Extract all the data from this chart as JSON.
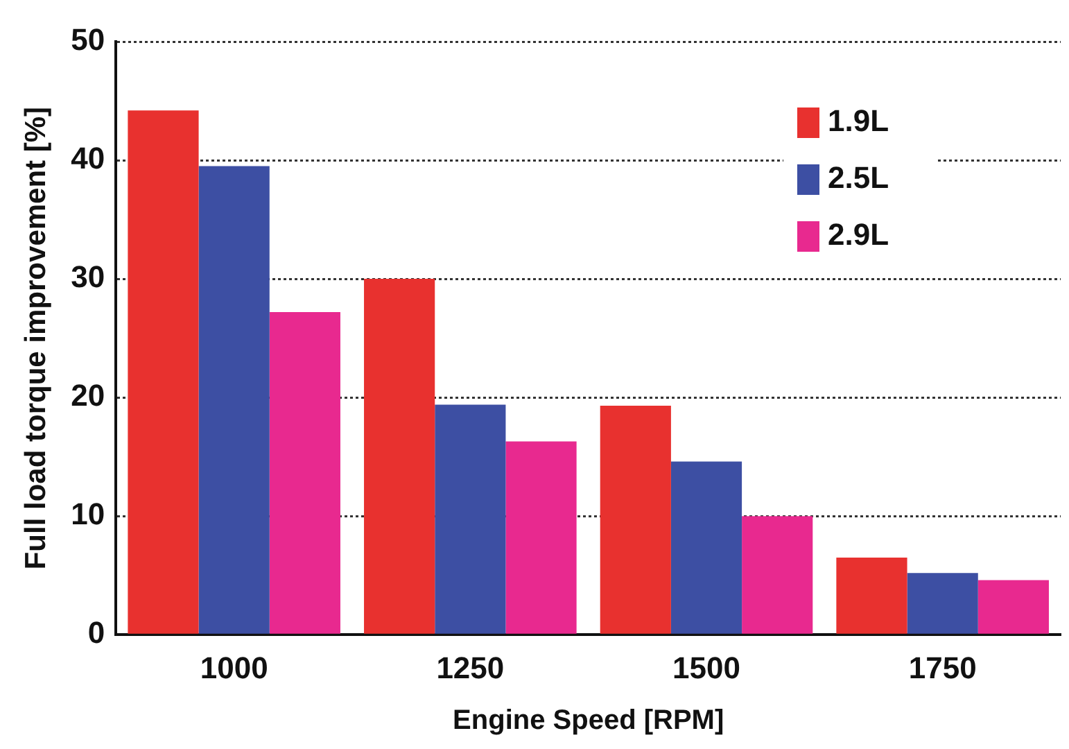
{
  "chart_data": {
    "type": "bar",
    "xlabel": "Engine Speed [RPM]",
    "ylabel": "Full load torque improvement [%]",
    "categories": [
      "1000",
      "1250",
      "1500",
      "1750"
    ],
    "series": [
      {
        "name": "1.9L",
        "color": "#e8312f",
        "values": [
          44.2,
          30,
          19.3,
          6.5
        ]
      },
      {
        "name": "2.5L",
        "color": "#3d4fa3",
        "values": [
          39.5,
          19.4,
          14.6,
          5.2
        ]
      },
      {
        "name": "2.9L",
        "color": "#e8298f",
        "values": [
          27.2,
          16.3,
          10,
          4.6
        ]
      }
    ],
    "ylim": [
      0,
      50
    ],
    "yticks": [
      0,
      10,
      20,
      30,
      40,
      50
    ],
    "grid": "y",
    "legend": "top right"
  }
}
